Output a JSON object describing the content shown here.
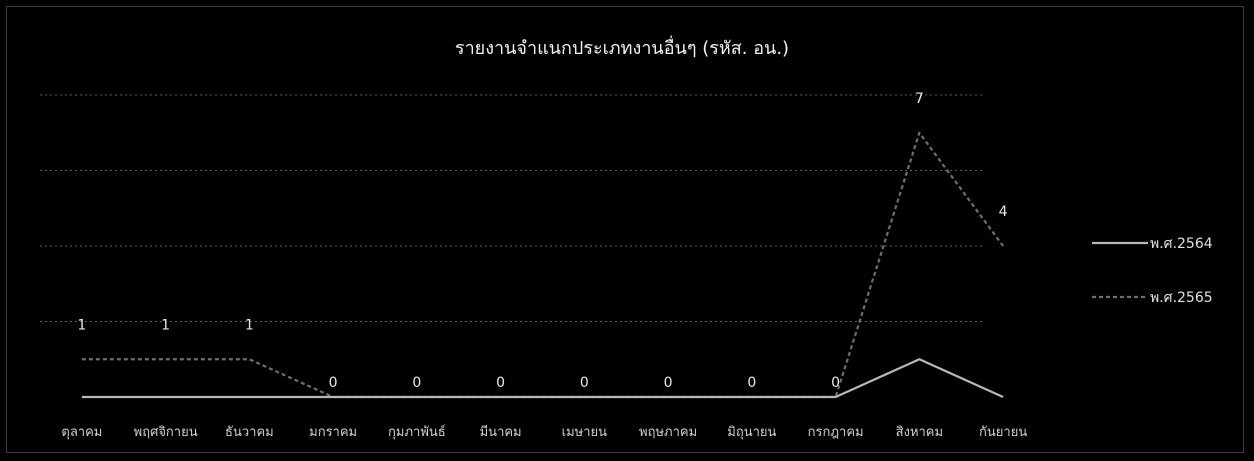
{
  "chart_data": {
    "type": "line",
    "title": "รายงานจำแนกประเภทงานอื่นๆ (รหัส. อน.)",
    "xlabel": "",
    "ylabel": "",
    "categories": [
      "ตุลาคม",
      "พฤศจิกายน",
      "ธันวาคม",
      "มกราคม",
      "กุมภาพันธ์",
      "มีนาคม",
      "เมษายน",
      "พฤษภาคม",
      "มิถุนายน",
      "กรกฎาคม",
      "สิงหาคม",
      "กันยายน"
    ],
    "series": [
      {
        "name": "พ.ศ.2564",
        "values": [
          0,
          0,
          0,
          0,
          0,
          0,
          0,
          0,
          0,
          0,
          1,
          0
        ],
        "labeled": false
      },
      {
        "name": "พ.ศ.2565",
        "values": [
          1,
          1,
          1,
          0,
          0,
          0,
          0,
          0,
          0,
          0,
          7,
          4
        ],
        "labeled": true
      }
    ],
    "ylim": [
      0,
      8
    ],
    "grid": true,
    "legend_position": "right",
    "colors": {
      "background": "#000000",
      "series_2564": "#b8b8b8",
      "series_2565": "#6e6e6e",
      "grid": "#5a5a5a",
      "text": "#e8e8e8"
    }
  }
}
